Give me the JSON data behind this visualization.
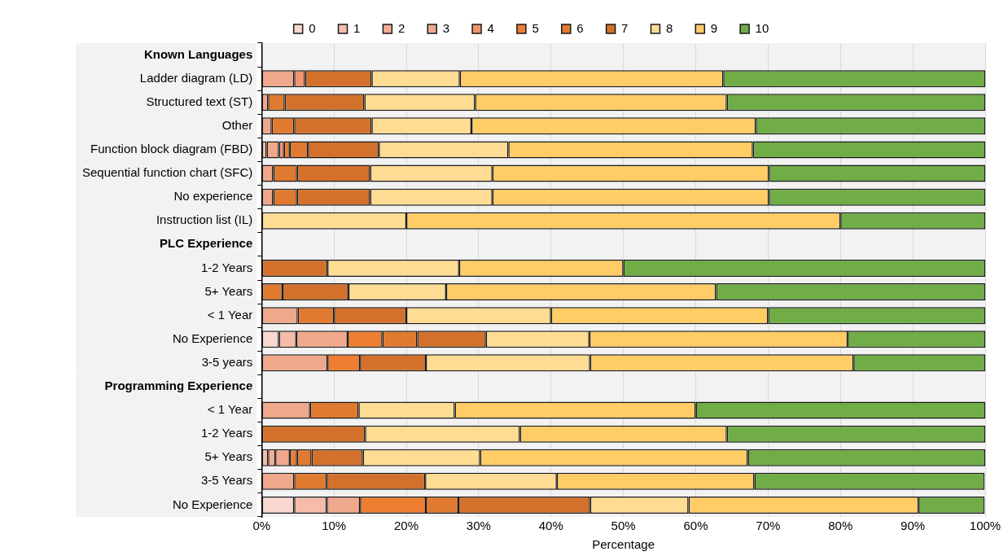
{
  "chart_data": {
    "type": "bar",
    "orientation": "horizontal",
    "stacked": true,
    "xlabel": "Percentage",
    "legend": "top",
    "grid": "x",
    "categories": [
      "Known Languages",
      "Ladder diagram (LD)",
      "Structured text (ST)",
      "Other",
      "Function block diagram (FBD)",
      "Sequential function chart (SFC)",
      "No experience",
      "Instruction list (IL)",
      "PLC Experience",
      "1-2 Years",
      "5+ Years",
      "< 1 Year",
      "No Experience",
      "3-5 years",
      "Programming Experience",
      "< 1 Year",
      "1-2 Years",
      "5+ Years",
      "3-5 Years",
      "No Experience"
    ],
    "xlim": [
      0,
      100
    ],
    "xticks": [
      {
        "value": 0,
        "label": "0%"
      },
      {
        "value": 10,
        "label": "10%"
      },
      {
        "value": 20,
        "label": "20%"
      },
      {
        "value": 30,
        "label": "30%"
      },
      {
        "value": 40,
        "label": "40%"
      },
      {
        "value": 50,
        "label": "50%"
      },
      {
        "value": 60,
        "label": "60%"
      },
      {
        "value": 70,
        "label": "70%"
      },
      {
        "value": 80,
        "label": "80%"
      },
      {
        "value": 90,
        "label": "90%"
      },
      {
        "value": 100,
        "label": "100%"
      }
    ],
    "series": [
      {
        "name": "0",
        "color": "#f8d7cf",
        "values": [
          null,
          null,
          null,
          null,
          null,
          null,
          null,
          null,
          null,
          null,
          null,
          null,
          2.4,
          null,
          null,
          null,
          null,
          null,
          null,
          4.5
        ]
      },
      {
        "name": "1",
        "color": "#f4bca9",
        "values": [
          null,
          null,
          null,
          null,
          0.7,
          null,
          null,
          null,
          null,
          null,
          null,
          null,
          2.4,
          null,
          null,
          null,
          null,
          0.9,
          null,
          4.5
        ]
      },
      {
        "name": "2",
        "color": "#f2ae93",
        "values": [
          null,
          null,
          null,
          null,
          null,
          null,
          null,
          null,
          null,
          null,
          null,
          null,
          null,
          null,
          null,
          null,
          null,
          1.0,
          null,
          null
        ]
      },
      {
        "name": "3",
        "color": "#f0a88c",
        "values": [
          null,
          4.5,
          0.9,
          1.4,
          1.7,
          1.6,
          1.6,
          null,
          null,
          null,
          null,
          5,
          7.1,
          9.1,
          null,
          6.7,
          null,
          2.0,
          4.5,
          4.6
        ]
      },
      {
        "name": "4",
        "color": "#ef9670",
        "values": [
          null,
          1.5,
          null,
          null,
          0.7,
          null,
          null,
          null,
          null,
          null,
          null,
          null,
          null,
          null,
          null,
          null,
          null,
          null,
          null,
          null
        ]
      },
      {
        "name": "5",
        "color": "#ed7d31",
        "values": [
          null,
          null,
          null,
          null,
          0.8,
          null,
          null,
          null,
          null,
          null,
          null,
          null,
          4.8,
          4.5,
          null,
          null,
          null,
          1.0,
          null,
          9.1
        ]
      },
      {
        "name": "6",
        "color": "#e07a30",
        "values": [
          null,
          null,
          2.3,
          3.1,
          2.5,
          3.3,
          3.3,
          null,
          null,
          null,
          2.9,
          5,
          4.8,
          null,
          null,
          6.7,
          null,
          2.0,
          4.5,
          4.5
        ]
      },
      {
        "name": "7",
        "color": "#d3712c",
        "values": [
          null,
          9.2,
          11.0,
          10.7,
          9.8,
          10.1,
          10.1,
          null,
          null,
          9.1,
          9.1,
          10,
          9.5,
          9.1,
          null,
          null,
          14.3,
          7.1,
          13.6,
          18.2
        ]
      },
      {
        "name": "8",
        "color": "#ffdc93",
        "values": [
          null,
          12.2,
          15.3,
          13.8,
          17.9,
          16.9,
          16.9,
          20,
          null,
          18.2,
          13.5,
          20,
          14.3,
          22.7,
          null,
          13.3,
          21.4,
          16.2,
          18.2,
          13.6
        ]
      },
      {
        "name": "9",
        "color": "#ffcc66",
        "values": [
          null,
          36.4,
          34.8,
          39.3,
          33.8,
          38.2,
          38.2,
          60,
          null,
          22.7,
          37.3,
          30,
          35.7,
          36.4,
          null,
          33.3,
          28.6,
          37.0,
          27.3,
          31.8
        ]
      },
      {
        "name": "10",
        "color": "#70ad47",
        "values": [
          null,
          36.2,
          35.7,
          31.7,
          32.1,
          29.9,
          29.9,
          20,
          null,
          50,
          37.2,
          30,
          19.0,
          18.2,
          null,
          40,
          35.7,
          32.8,
          31.8,
          9.1
        ]
      }
    ]
  }
}
